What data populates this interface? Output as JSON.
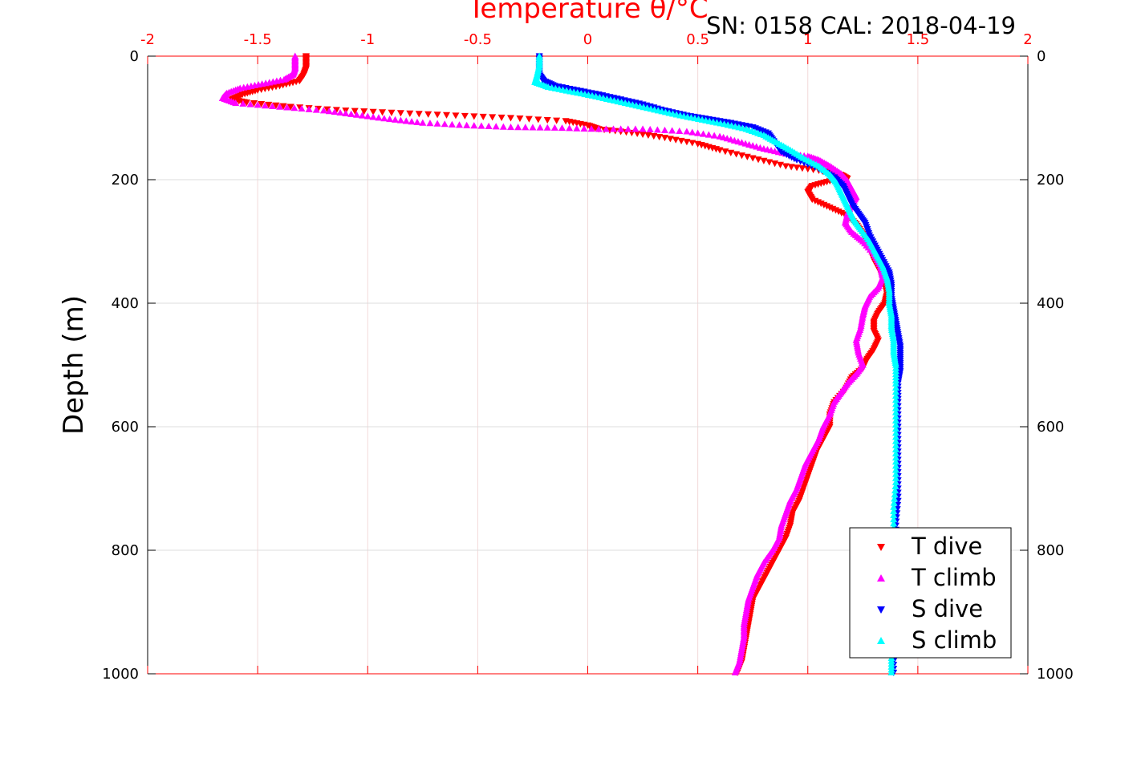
{
  "chart_data": {
    "type": "scatter",
    "top_axis": {
      "label": "Temperature θ/°C",
      "range": [
        -2,
        2
      ],
      "ticks": [
        -2,
        -1.5,
        -1,
        -0.5,
        0,
        0.5,
        1,
        1.5,
        2
      ],
      "tick_labels": [
        "-2",
        "-1.5",
        "-1",
        "-0.5",
        "0",
        "0.5",
        "1",
        "1.5",
        "2"
      ],
      "color": "#ff0000"
    },
    "y_axis": {
      "label": "Depth (m)",
      "range": [
        0,
        1000
      ],
      "reversed": true,
      "ticks": [
        0,
        200,
        400,
        600,
        800,
        1000
      ],
      "tick_labels": [
        "0",
        "200",
        "400",
        "600",
        "800",
        "1000"
      ]
    },
    "annotation": "SN: 0158  CAL: 2018-04-19",
    "grid": true,
    "legend": {
      "placement": "bottom-right",
      "entries": [
        {
          "label": "T dive",
          "color": "#ff0000",
          "marker": "triangle-down"
        },
        {
          "label": "T climb",
          "color": "#ff00ff",
          "marker": "triangle-up"
        },
        {
          "label": "S dive",
          "color": "#0000ff",
          "marker": "triangle-down"
        },
        {
          "label": "S climb",
          "color": "#00ffff",
          "marker": "triangle-up"
        }
      ]
    },
    "series": [
      {
        "name": "T dive",
        "color": "#ff0000",
        "marker": "triangle-down",
        "points": [
          [
            -1.28,
            0
          ],
          [
            -1.28,
            10
          ],
          [
            -1.28,
            20
          ],
          [
            -1.29,
            30
          ],
          [
            -1.31,
            40
          ],
          [
            -1.4,
            48
          ],
          [
            -1.5,
            55
          ],
          [
            -1.57,
            62
          ],
          [
            -1.62,
            70
          ],
          [
            -1.55,
            75
          ],
          [
            -1.35,
            82
          ],
          [
            -1.1,
            88
          ],
          [
            -0.85,
            92
          ],
          [
            -0.6,
            96
          ],
          [
            -0.35,
            100
          ],
          [
            -0.1,
            105
          ],
          [
            0.0,
            112
          ],
          [
            0.05,
            118
          ],
          [
            0.2,
            124
          ],
          [
            0.35,
            132
          ],
          [
            0.5,
            142
          ],
          [
            0.6,
            152
          ],
          [
            0.75,
            165
          ],
          [
            0.9,
            178
          ],
          [
            1.05,
            185
          ],
          [
            1.15,
            192
          ],
          [
            1.18,
            198
          ],
          [
            1.1,
            202
          ],
          [
            1.02,
            210
          ],
          [
            1.0,
            220
          ],
          [
            1.02,
            232
          ],
          [
            1.1,
            245
          ],
          [
            1.18,
            258
          ],
          [
            1.22,
            272
          ],
          [
            1.25,
            288
          ],
          [
            1.28,
            310
          ],
          [
            1.3,
            330
          ],
          [
            1.33,
            350
          ],
          [
            1.35,
            370
          ],
          [
            1.36,
            385
          ],
          [
            1.35,
            400
          ],
          [
            1.32,
            415
          ],
          [
            1.3,
            430
          ],
          [
            1.3,
            445
          ],
          [
            1.32,
            460
          ],
          [
            1.3,
            475
          ],
          [
            1.27,
            490
          ],
          [
            1.25,
            505
          ],
          [
            1.2,
            520
          ],
          [
            1.17,
            540
          ],
          [
            1.12,
            560
          ],
          [
            1.1,
            580
          ],
          [
            1.1,
            600
          ],
          [
            1.07,
            620
          ],
          [
            1.04,
            640
          ],
          [
            1.02,
            660
          ],
          [
            1.0,
            680
          ],
          [
            0.98,
            700
          ],
          [
            0.96,
            720
          ],
          [
            0.93,
            740
          ],
          [
            0.92,
            760
          ],
          [
            0.9,
            780
          ],
          [
            0.87,
            800
          ],
          [
            0.84,
            820
          ],
          [
            0.81,
            840
          ],
          [
            0.78,
            860
          ],
          [
            0.75,
            880
          ],
          [
            0.74,
            900
          ],
          [
            0.73,
            920
          ],
          [
            0.72,
            940
          ],
          [
            0.71,
            960
          ],
          [
            0.7,
            980
          ],
          [
            0.68,
            998
          ]
        ]
      },
      {
        "name": "T climb",
        "color": "#ff00ff",
        "marker": "triangle-up",
        "points": [
          [
            -1.33,
            0
          ],
          [
            -1.33,
            10
          ],
          [
            -1.33,
            20
          ],
          [
            -1.34,
            30
          ],
          [
            -1.38,
            38
          ],
          [
            -1.48,
            45
          ],
          [
            -1.58,
            52
          ],
          [
            -1.64,
            60
          ],
          [
            -1.66,
            68
          ],
          [
            -1.6,
            76
          ],
          [
            -1.4,
            82
          ],
          [
            -1.2,
            88
          ],
          [
            -1.05,
            95
          ],
          [
            -0.9,
            102
          ],
          [
            -0.75,
            108
          ],
          [
            -0.55,
            112
          ],
          [
            -0.35,
            115
          ],
          [
            -0.15,
            116
          ],
          [
            0.05,
            118
          ],
          [
            0.25,
            118
          ],
          [
            0.45,
            122
          ],
          [
            0.6,
            130
          ],
          [
            0.7,
            140
          ],
          [
            0.8,
            150
          ],
          [
            0.9,
            158
          ],
          [
            1.0,
            162
          ],
          [
            1.05,
            168
          ],
          [
            1.1,
            178
          ],
          [
            1.15,
            190
          ],
          [
            1.18,
            202
          ],
          [
            1.2,
            215
          ],
          [
            1.22,
            228
          ],
          [
            1.2,
            240
          ],
          [
            1.18,
            255
          ],
          [
            1.17,
            270
          ],
          [
            1.2,
            285
          ],
          [
            1.25,
            300
          ],
          [
            1.3,
            320
          ],
          [
            1.33,
            340
          ],
          [
            1.34,
            358
          ],
          [
            1.32,
            375
          ],
          [
            1.28,
            390
          ],
          [
            1.26,
            405
          ],
          [
            1.25,
            420
          ],
          [
            1.24,
            440
          ],
          [
            1.22,
            460
          ],
          [
            1.23,
            480
          ],
          [
            1.25,
            500
          ],
          [
            1.22,
            515
          ],
          [
            1.18,
            530
          ],
          [
            1.15,
            545
          ],
          [
            1.12,
            560
          ],
          [
            1.1,
            580
          ],
          [
            1.07,
            600
          ],
          [
            1.05,
            620
          ],
          [
            1.02,
            640
          ],
          [
            0.99,
            660
          ],
          [
            0.97,
            680
          ],
          [
            0.95,
            700
          ],
          [
            0.92,
            720
          ],
          [
            0.9,
            740
          ],
          [
            0.88,
            760
          ],
          [
            0.87,
            780
          ],
          [
            0.84,
            800
          ],
          [
            0.8,
            820
          ],
          [
            0.77,
            840
          ],
          [
            0.75,
            860
          ],
          [
            0.73,
            880
          ],
          [
            0.72,
            900
          ],
          [
            0.71,
            920
          ],
          [
            0.71,
            940
          ],
          [
            0.7,
            960
          ],
          [
            0.69,
            980
          ],
          [
            0.67,
            998
          ]
        ]
      },
      {
        "name": "S dive",
        "color": "#0000ff",
        "marker": "triangle-down",
        "points": [
          [
            -0.22,
            0
          ],
          [
            -0.22,
            15
          ],
          [
            -0.22,
            30
          ],
          [
            -0.2,
            40
          ],
          [
            -0.15,
            48
          ],
          [
            -0.05,
            55
          ],
          [
            0.05,
            62
          ],
          [
            0.15,
            70
          ],
          [
            0.25,
            78
          ],
          [
            0.35,
            88
          ],
          [
            0.45,
            96
          ],
          [
            0.55,
            102
          ],
          [
            0.65,
            108
          ],
          [
            0.75,
            115
          ],
          [
            0.82,
            125
          ],
          [
            0.85,
            140
          ],
          [
            0.88,
            155
          ],
          [
            0.95,
            168
          ],
          [
            1.05,
            182
          ],
          [
            1.12,
            196
          ],
          [
            1.16,
            210
          ],
          [
            1.18,
            225
          ],
          [
            1.2,
            240
          ],
          [
            1.23,
            255
          ],
          [
            1.26,
            270
          ],
          [
            1.28,
            290
          ],
          [
            1.31,
            310
          ],
          [
            1.34,
            330
          ],
          [
            1.37,
            350
          ],
          [
            1.38,
            370
          ],
          [
            1.38,
            390
          ],
          [
            1.39,
            410
          ],
          [
            1.4,
            430
          ],
          [
            1.41,
            450
          ],
          [
            1.42,
            470
          ],
          [
            1.42,
            490
          ],
          [
            1.42,
            510
          ],
          [
            1.41,
            530
          ],
          [
            1.41,
            560
          ],
          [
            1.41,
            600
          ],
          [
            1.41,
            640
          ],
          [
            1.41,
            680
          ],
          [
            1.41,
            720
          ],
          [
            1.4,
            760
          ],
          [
            1.4,
            800
          ],
          [
            1.39,
            840
          ],
          [
            1.39,
            880
          ],
          [
            1.39,
            920
          ],
          [
            1.39,
            960
          ],
          [
            1.39,
            998
          ]
        ]
      },
      {
        "name": "S climb",
        "color": "#00ffff",
        "marker": "triangle-up",
        "points": [
          [
            -0.22,
            0
          ],
          [
            -0.22,
            15
          ],
          [
            -0.23,
            30
          ],
          [
            -0.24,
            42
          ],
          [
            -0.18,
            50
          ],
          [
            -0.08,
            57
          ],
          [
            0.02,
            64
          ],
          [
            0.12,
            72
          ],
          [
            0.22,
            80
          ],
          [
            0.32,
            88
          ],
          [
            0.42,
            96
          ],
          [
            0.52,
            103
          ],
          [
            0.62,
            110
          ],
          [
            0.72,
            118
          ],
          [
            0.8,
            128
          ],
          [
            0.86,
            140
          ],
          [
            0.92,
            152
          ],
          [
            0.98,
            165
          ],
          [
            1.05,
            178
          ],
          [
            1.1,
            192
          ],
          [
            1.13,
            205
          ],
          [
            1.15,
            220
          ],
          [
            1.17,
            235
          ],
          [
            1.19,
            250
          ],
          [
            1.21,
            265
          ],
          [
            1.24,
            280
          ],
          [
            1.28,
            300
          ],
          [
            1.31,
            320
          ],
          [
            1.34,
            340
          ],
          [
            1.36,
            360
          ],
          [
            1.37,
            380
          ],
          [
            1.37,
            400
          ],
          [
            1.38,
            420
          ],
          [
            1.38,
            440
          ],
          [
            1.39,
            460
          ],
          [
            1.39,
            480
          ],
          [
            1.4,
            500
          ],
          [
            1.4,
            530
          ],
          [
            1.4,
            570
          ],
          [
            1.4,
            610
          ],
          [
            1.4,
            650
          ],
          [
            1.4,
            690
          ],
          [
            1.39,
            730
          ],
          [
            1.39,
            770
          ],
          [
            1.39,
            810
          ],
          [
            1.39,
            850
          ],
          [
            1.38,
            890
          ],
          [
            1.38,
            930
          ],
          [
            1.38,
            970
          ],
          [
            1.38,
            998
          ]
        ]
      }
    ]
  }
}
